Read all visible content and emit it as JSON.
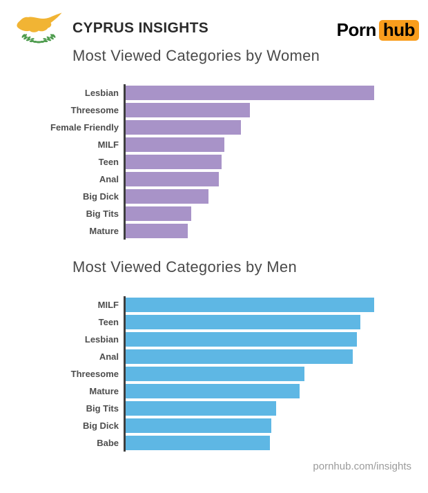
{
  "header": {
    "brand": "CYPRUS INSIGHTS",
    "flag_icon": "cyprus-flag",
    "logo": {
      "part1": "Porn",
      "part2": "hub",
      "accent_color": "#f99d1c"
    }
  },
  "colors": {
    "women_bar": "#a893c8",
    "men_bar": "#5eb7e4",
    "axis": "#3e3e3e",
    "title_text": "#4a4a4a",
    "label_text": "#4d4d4d",
    "footer_text": "#9b9b9b",
    "flag_island_gold": "#f1b434",
    "flag_olive_green": "#4d9b4d"
  },
  "chart_data": [
    {
      "type": "bar",
      "orientation": "horizontal",
      "title": "Most Viewed Categories by Women",
      "categories": [
        "Lesbian",
        "Threesome",
        "Female Friendly",
        "MILF",
        "Teen",
        "Anal",
        "Big Dick",
        "Big Tits",
        "Mature"
      ],
      "values": [
        100,
        50,
        46.3,
        39.7,
        38.5,
        37.4,
        33.2,
        26.4,
        25
      ],
      "value_unit": "relative views, % of top category (estimated from bar lengths; no numeric axis shown)",
      "bar_color": "#a893c8",
      "xlim": [
        0,
        100
      ],
      "grid": false,
      "legend": false,
      "axis_line": "left"
    },
    {
      "type": "bar",
      "orientation": "horizontal",
      "title": "Most Viewed Categories by Men",
      "categories": [
        "MILF",
        "Teen",
        "Lesbian",
        "Anal",
        "Threesome",
        "Mature",
        "Big Tits",
        "Big Dick",
        "Babe"
      ],
      "values": [
        100,
        94.4,
        93,
        91.3,
        72,
        70,
        60.5,
        58.5,
        58
      ],
      "value_unit": "relative views, % of top category (estimated from bar lengths; no numeric axis shown)",
      "bar_color": "#5eb7e4",
      "xlim": [
        0,
        100
      ],
      "grid": false,
      "legend": false,
      "axis_line": "left"
    }
  ],
  "footer": {
    "url": "pornhub.com/insights"
  }
}
